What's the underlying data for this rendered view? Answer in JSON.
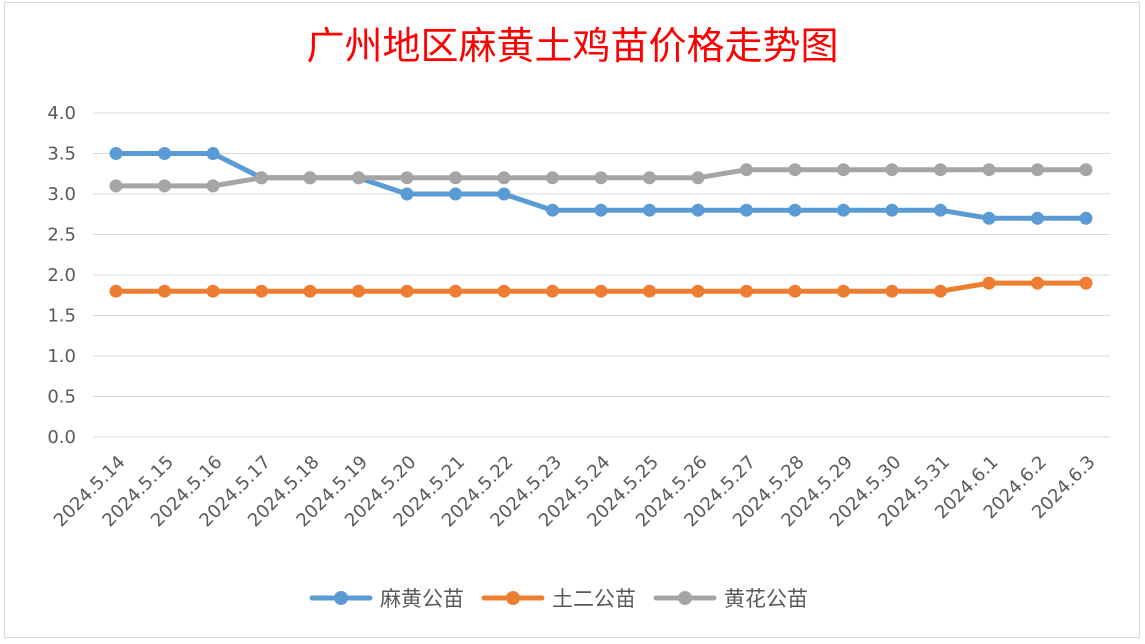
{
  "chart_data": {
    "type": "line",
    "title": "广州地区麻黄土鸡苗价格走势图",
    "xlabel": "",
    "ylabel": "",
    "ylim": [
      0,
      4.0
    ],
    "yticks": [
      "0.0",
      "0.5",
      "1.0",
      "1.5",
      "2.0",
      "2.5",
      "3.0",
      "3.5",
      "4.0"
    ],
    "grid": true,
    "legend_position": "bottom",
    "categories": [
      "2024.5.14",
      "2024.5.15",
      "2024.5.16",
      "2024.5.17",
      "2024.5.18",
      "2024.5.19",
      "2024.5.20",
      "2024.5.21",
      "2024.5.22",
      "2024.5.23",
      "2024.5.24",
      "2024.5.25",
      "2024.5.26",
      "2024.5.27",
      "2024.5.28",
      "2024.5.29",
      "2024.5.30",
      "2024.5.31",
      "2024.6.1",
      "2024.6.2",
      "2024.6.3"
    ],
    "series": [
      {
        "name": "麻黄公苗",
        "color": "#5b9bd5",
        "values": [
          3.5,
          3.5,
          3.5,
          3.2,
          3.2,
          3.2,
          3.0,
          3.0,
          3.0,
          2.8,
          2.8,
          2.8,
          2.8,
          2.8,
          2.8,
          2.8,
          2.8,
          2.8,
          2.7,
          2.7,
          2.7
        ]
      },
      {
        "name": "土二公苗",
        "color": "#ed7d31",
        "values": [
          1.8,
          1.8,
          1.8,
          1.8,
          1.8,
          1.8,
          1.8,
          1.8,
          1.8,
          1.8,
          1.8,
          1.8,
          1.8,
          1.8,
          1.8,
          1.8,
          1.8,
          1.8,
          1.9,
          1.9,
          1.9
        ]
      },
      {
        "name": "黄花公苗",
        "color": "#a5a5a5",
        "values": [
          3.1,
          3.1,
          3.1,
          3.2,
          3.2,
          3.2,
          3.2,
          3.2,
          3.2,
          3.2,
          3.2,
          3.2,
          3.2,
          3.3,
          3.3,
          3.3,
          3.3,
          3.3,
          3.3,
          3.3,
          3.3
        ]
      }
    ]
  }
}
